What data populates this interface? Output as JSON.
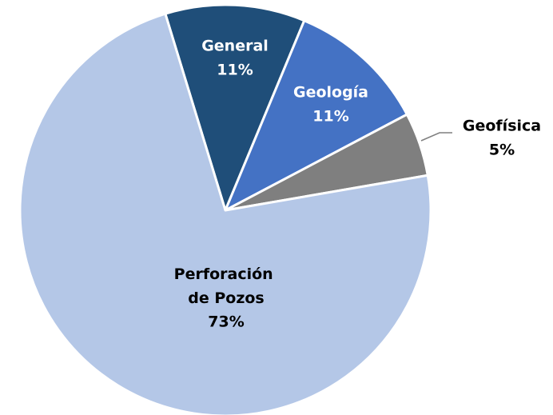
{
  "chart_data": {
    "type": "pie",
    "categories": [
      "General",
      "Geología",
      "Geofísica",
      "Perforación de Pozos"
    ],
    "values": [
      11,
      11,
      5,
      73
    ],
    "value_labels": [
      "11%",
      "11%",
      "5%",
      "73%"
    ],
    "colors": [
      "#1f4e79",
      "#4472c4",
      "#7f7f7f",
      "#b4c7e7"
    ]
  }
}
